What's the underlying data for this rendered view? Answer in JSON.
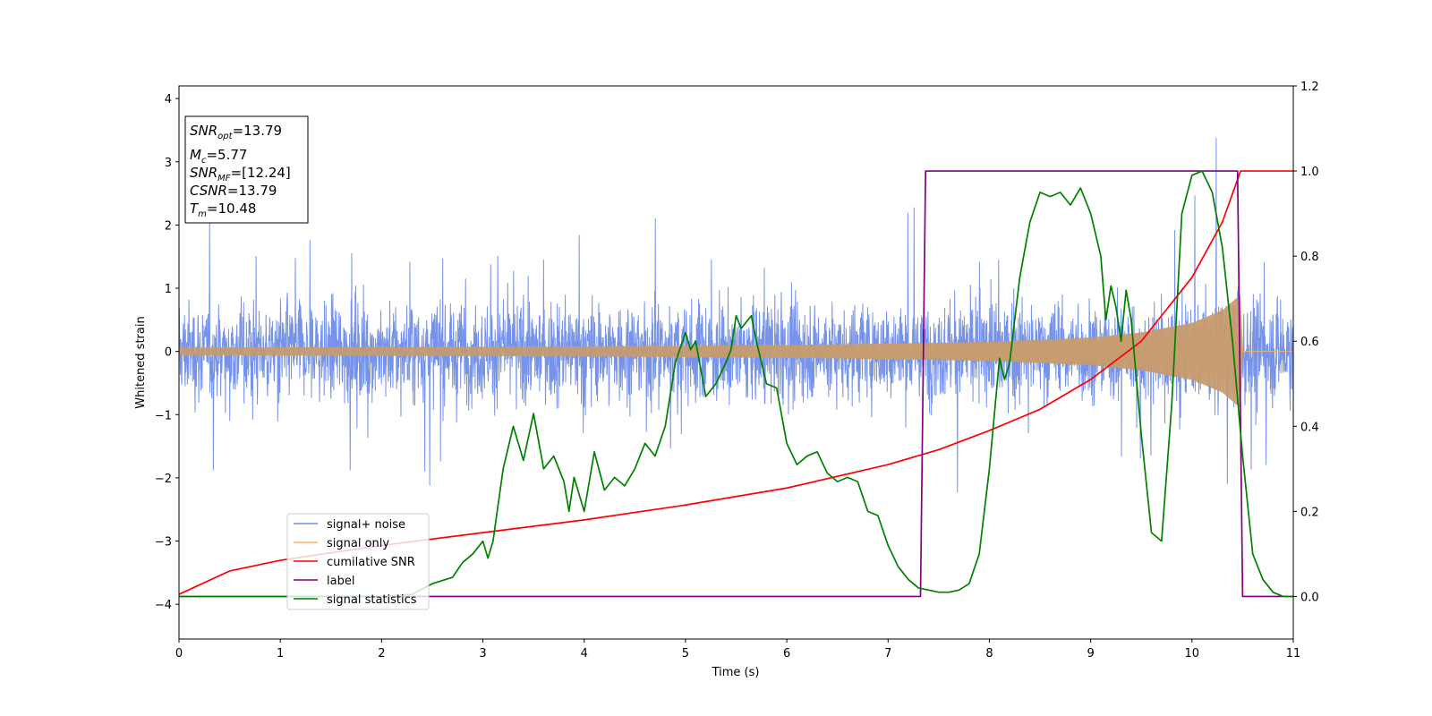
{
  "chart_data": {
    "type": "line",
    "xlabel": "Time (s)",
    "ylabel": "Whitened strain",
    "xlim": [
      0,
      11
    ],
    "ylim": [
      -4.55,
      4.2
    ],
    "y2lim": [
      -0.1,
      1.2
    ],
    "xticks": [
      "0",
      "1",
      "2",
      "3",
      "4",
      "5",
      "6",
      "7",
      "8",
      "9",
      "10",
      "11"
    ],
    "yticks": [
      "4",
      "3",
      "2",
      "1",
      "0",
      "−1",
      "−2",
      "−3",
      "−4"
    ],
    "y2ticks": [
      "1.2",
      "1.0",
      "0.8",
      "0.6",
      "0.4",
      "0.2",
      "0.0"
    ],
    "grid": false,
    "legend_position": "lower-left",
    "info_box": {
      "snr_opt": {
        "base": "SNR",
        "sub": "opt",
        "value": "=13.79"
      },
      "mc": {
        "base": "M",
        "sub": "c",
        "value": "=5.77"
      },
      "snr_mf": {
        "base": "SNR",
        "sub": "MF",
        "value": "=[12.24]"
      },
      "csnr": {
        "base": "CSNR",
        "value": "=13.79"
      },
      "tm": {
        "base": "T",
        "sub": "m",
        "value": "=10.48"
      }
    },
    "series": [
      {
        "name": "signal+ noise",
        "color": "#6e8de8",
        "axis": "left",
        "envelope_std": 1.0,
        "range": [
          -3.9,
          3.8
        ]
      },
      {
        "name": "signal only",
        "color": "#f5b266",
        "axis": "left",
        "chirp_amplitude": {
          "x": [
            0,
            2,
            4,
            6,
            8,
            9,
            9.5,
            10,
            10.3,
            10.48,
            10.5,
            11
          ],
          "y": [
            0.06,
            0.07,
            0.08,
            0.1,
            0.15,
            0.22,
            0.3,
            0.45,
            0.65,
            0.9,
            0,
            0
          ]
        }
      },
      {
        "name": "cumilative SNR",
        "color": "#ff0000",
        "axis": "right",
        "x": [
          0,
          0.5,
          1,
          2,
          3,
          4,
          5,
          6,
          7,
          7.5,
          8,
          8.5,
          9,
          9.5,
          10,
          10.3,
          10.48,
          11
        ],
        "y": [
          0.005,
          0.06,
          0.085,
          0.12,
          0.15,
          0.18,
          0.215,
          0.255,
          0.31,
          0.345,
          0.39,
          0.44,
          0.51,
          0.6,
          0.75,
          0.88,
          1.0,
          1.0
        ]
      },
      {
        "name": "label",
        "color": "#800080",
        "axis": "right",
        "x": [
          0,
          7.32,
          7.37,
          10.45,
          10.5,
          11
        ],
        "y": [
          0,
          0,
          1,
          1,
          0,
          0
        ]
      },
      {
        "name": "signal statistics",
        "color": "#008000",
        "axis": "right",
        "x": [
          0,
          0.5,
          1,
          1.5,
          2,
          2.3,
          2.5,
          2.7,
          2.8,
          2.9,
          3.0,
          3.05,
          3.1,
          3.2,
          3.3,
          3.4,
          3.5,
          3.6,
          3.7,
          3.8,
          3.85,
          3.9,
          4.0,
          4.1,
          4.2,
          4.3,
          4.4,
          4.5,
          4.6,
          4.7,
          4.8,
          4.9,
          5.0,
          5.05,
          5.1,
          5.2,
          5.3,
          5.4,
          5.45,
          5.5,
          5.55,
          5.65,
          5.7,
          5.8,
          5.9,
          6.0,
          6.1,
          6.2,
          6.3,
          6.4,
          6.5,
          6.6,
          6.7,
          6.8,
          6.9,
          7.0,
          7.1,
          7.2,
          7.3,
          7.4,
          7.5,
          7.6,
          7.7,
          7.8,
          7.9,
          8.0,
          8.1,
          8.15,
          8.2,
          8.3,
          8.4,
          8.5,
          8.6,
          8.7,
          8.8,
          8.9,
          9.0,
          9.1,
          9.15,
          9.2,
          9.25,
          9.3,
          9.35,
          9.4,
          9.5,
          9.6,
          9.7,
          9.8,
          9.9,
          10.0,
          10.1,
          10.2,
          10.3,
          10.4,
          10.5,
          10.6,
          10.7,
          10.8,
          10.9,
          11
        ],
        "y": [
          0.0,
          0.0,
          0.0,
          0.0,
          0.0,
          0.005,
          0.03,
          0.045,
          0.08,
          0.1,
          0.13,
          0.09,
          0.13,
          0.3,
          0.4,
          0.32,
          0.43,
          0.3,
          0.33,
          0.27,
          0.2,
          0.28,
          0.2,
          0.34,
          0.25,
          0.28,
          0.26,
          0.3,
          0.36,
          0.33,
          0.4,
          0.55,
          0.62,
          0.58,
          0.6,
          0.47,
          0.5,
          0.55,
          0.58,
          0.66,
          0.63,
          0.66,
          0.6,
          0.5,
          0.49,
          0.36,
          0.31,
          0.33,
          0.34,
          0.29,
          0.27,
          0.28,
          0.27,
          0.2,
          0.19,
          0.12,
          0.07,
          0.04,
          0.02,
          0.015,
          0.01,
          0.01,
          0.015,
          0.03,
          0.1,
          0.3,
          0.56,
          0.51,
          0.55,
          0.75,
          0.88,
          0.95,
          0.94,
          0.95,
          0.92,
          0.96,
          0.9,
          0.8,
          0.65,
          0.73,
          0.68,
          0.6,
          0.72,
          0.65,
          0.38,
          0.15,
          0.13,
          0.45,
          0.9,
          0.99,
          1.0,
          0.95,
          0.82,
          0.6,
          0.33,
          0.1,
          0.04,
          0.01,
          0.0,
          0.0
        ]
      }
    ]
  }
}
